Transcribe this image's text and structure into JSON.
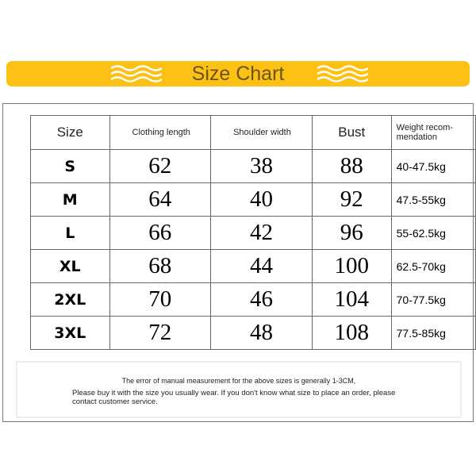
{
  "banner": {
    "title": "Size Chart",
    "color": "#fcc114",
    "left_icon": "wave-icon",
    "right_icon": "wave-icon"
  },
  "table": {
    "headers": [
      "Size",
      "Clothing length",
      "Shoulder width",
      "Bust",
      "Weight recom-mendation"
    ],
    "rows": [
      [
        "S",
        "62",
        "38",
        "88",
        "40-47.5kg"
      ],
      [
        "M",
        "64",
        "40",
        "92",
        "47.5-55kg"
      ],
      [
        "L",
        "66",
        "42",
        "96",
        "55-62.5kg"
      ],
      [
        "XL",
        "68",
        "44",
        "100",
        "62.5-70kg"
      ],
      [
        "2XL",
        "70",
        "46",
        "104",
        "70-77.5kg"
      ],
      [
        "3XL",
        "72",
        "48",
        "108",
        "77.5-85kg"
      ]
    ]
  },
  "note": {
    "line1": "The error of manual measurement for the above sizes is generally 1-3CM,",
    "line2": "Please buy it with the size you usually wear. If you don't know what size to place an order, please contact customer service."
  }
}
